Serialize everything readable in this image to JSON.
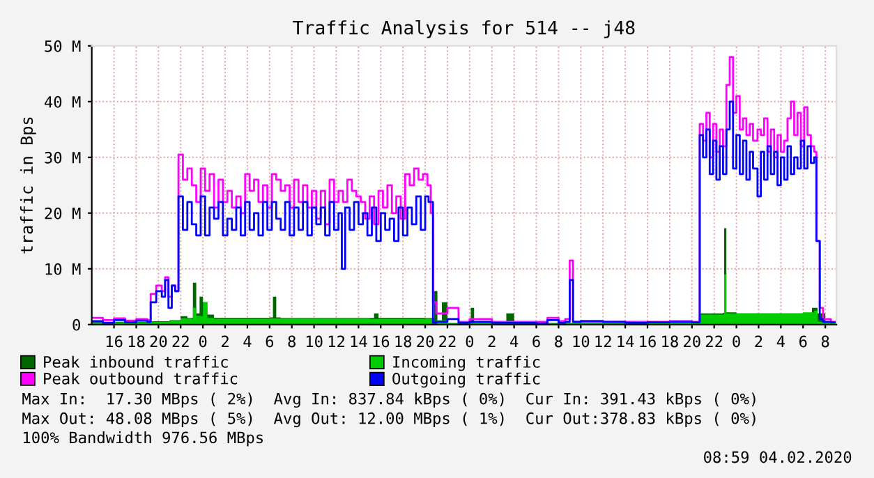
{
  "chart_data": {
    "type": "step",
    "title": "Traffic Analysis for 514 -- j48",
    "ylabel": "traffic in Bps",
    "xlim": [
      "2020-02-01T14:00",
      "2020-02-04T09:00"
    ],
    "xticks": [
      {
        "value": "2020-02-01T16:00",
        "label": "16"
      },
      {
        "value": "2020-02-01T18:00",
        "label": "18"
      },
      {
        "value": "2020-02-01T20:00",
        "label": "20"
      },
      {
        "value": "2020-02-01T22:00",
        "label": "22"
      },
      {
        "value": "2020-02-02T00:00",
        "label": "0"
      },
      {
        "value": "2020-02-02T02:00",
        "label": "2"
      },
      {
        "value": "2020-02-02T04:00",
        "label": "4"
      },
      {
        "value": "2020-02-02T06:00",
        "label": "6"
      },
      {
        "value": "2020-02-02T08:00",
        "label": "8"
      },
      {
        "value": "2020-02-02T10:00",
        "label": "10"
      },
      {
        "value": "2020-02-02T12:00",
        "label": "12"
      },
      {
        "value": "2020-02-02T14:00",
        "label": "14"
      },
      {
        "value": "2020-02-02T16:00",
        "label": "16"
      },
      {
        "value": "2020-02-02T18:00",
        "label": "18"
      },
      {
        "value": "2020-02-02T20:00",
        "label": "20"
      },
      {
        "value": "2020-02-02T22:00",
        "label": "22"
      },
      {
        "value": "2020-02-03T00:00",
        "label": "0"
      },
      {
        "value": "2020-02-03T02:00",
        "label": "2"
      },
      {
        "value": "2020-02-03T04:00",
        "label": "4"
      },
      {
        "value": "2020-02-03T06:00",
        "label": "6"
      },
      {
        "value": "2020-02-03T08:00",
        "label": "8"
      },
      {
        "value": "2020-02-03T10:00",
        "label": "10"
      },
      {
        "value": "2020-02-03T12:00",
        "label": "12"
      },
      {
        "value": "2020-02-03T14:00",
        "label": "14"
      },
      {
        "value": "2020-02-03T16:00",
        "label": "16"
      },
      {
        "value": "2020-02-03T18:00",
        "label": "18"
      },
      {
        "value": "2020-02-03T20:00",
        "label": "20"
      },
      {
        "value": "2020-02-03T22:00",
        "label": "22"
      },
      {
        "value": "2020-02-04T00:00",
        "label": "0"
      },
      {
        "value": "2020-02-04T02:00",
        "label": "2"
      },
      {
        "value": "2020-02-04T04:00",
        "label": "4"
      },
      {
        "value": "2020-02-04T06:00",
        "label": "6"
      },
      {
        "value": "2020-02-04T08:00",
        "label": "8"
      }
    ],
    "ylim": [
      0,
      50
    ],
    "yticks": [
      0,
      {
        "value": 10,
        "label": "10 M"
      },
      {
        "value": 20,
        "label": "20 M"
      },
      {
        "value": 30,
        "label": "30 M"
      },
      {
        "value": 40,
        "label": "40 M"
      },
      {
        "value": 50,
        "label": "50 M"
      }
    ],
    "grid": true,
    "legend": "bottom",
    "series": [
      {
        "name": "Peak inbound traffic",
        "type": "area",
        "color": "#006600",
        "x": [
          "2020-02-01T14:06",
          "2020-02-01T19:00",
          "2020-02-01T21:00",
          "2020-02-01T22:00",
          "2020-02-01T22:36",
          "2020-02-01T23:06",
          "2020-02-01T23:24",
          "2020-02-01T23:42",
          "2020-02-02T00:00",
          "2020-02-02T00:24",
          "2020-02-02T01:00",
          "2020-02-02T06:00",
          "2020-02-02T06:18",
          "2020-02-02T06:36",
          "2020-02-02T07:00",
          "2020-02-02T15:00",
          "2020-02-02T15:24",
          "2020-02-02T15:48",
          "2020-02-02T16:00",
          "2020-02-02T20:48",
          "2020-02-02T21:06",
          "2020-02-02T21:30",
          "2020-02-02T22:00",
          "2020-02-02T23:00",
          "2020-02-03T00:06",
          "2020-02-03T00:24",
          "2020-02-03T01:00",
          "2020-02-03T03:00",
          "2020-02-03T03:18",
          "2020-02-03T04:00",
          "2020-02-03T05:00",
          "2020-02-03T08:00",
          "2020-02-03T10:00",
          "2020-02-03T12:00",
          "2020-02-03T14:00",
          "2020-02-03T16:00",
          "2020-02-03T18:00",
          "2020-02-03T20:42",
          "2020-02-03T22:48",
          "2020-02-03T22:54",
          "2020-02-03T23:06",
          "2020-02-04T00:00",
          "2020-02-04T04:00",
          "2020-02-04T06:48",
          "2020-02-04T07:18",
          "2020-02-04T08:00",
          "2020-02-04T09:00"
        ],
        "values": [
          0.5,
          0.6,
          0.8,
          1.5,
          1.2,
          7.5,
          2,
          5,
          4,
          1.8,
          1.2,
          1.3,
          5,
          1.3,
          1.2,
          1.2,
          2,
          1.2,
          1.2,
          6,
          0.5,
          4,
          0.3,
          0.5,
          3,
          0.3,
          0.3,
          0.3,
          2,
          0.3,
          0.3,
          0.3,
          0.3,
          0.3,
          0.3,
          0.3,
          0.3,
          2,
          2.1,
          17.3,
          2.2,
          2,
          2,
          3,
          2,
          0.3,
          0.3
        ]
      },
      {
        "name": "Incoming traffic",
        "type": "area",
        "color": "#00cc00",
        "x": [
          "2020-02-01T14:06",
          "2020-02-01T19:00",
          "2020-02-01T21:00",
          "2020-02-01T22:00",
          "2020-02-01T23:00",
          "2020-02-01T23:06",
          "2020-02-01T23:24",
          "2020-02-02T00:00",
          "2020-02-02T00:24",
          "2020-02-02T01:00",
          "2020-02-02T06:00",
          "2020-02-02T15:00",
          "2020-02-02T20:00",
          "2020-02-02T20:42",
          "2020-02-02T21:00",
          "2020-02-02T22:00",
          "2020-02-03T00:00",
          "2020-02-03T04:00",
          "2020-02-03T08:00",
          "2020-02-03T12:00",
          "2020-02-03T16:00",
          "2020-02-03T20:00",
          "2020-02-03T20:42",
          "2020-02-03T22:54",
          "2020-02-03T23:06",
          "2020-02-04T02:00",
          "2020-02-04T06:00",
          "2020-02-04T07:00",
          "2020-02-04T07:18",
          "2020-02-04T08:00",
          "2020-02-04T09:00"
        ],
        "values": [
          0.4,
          0.5,
          0.7,
          1.1,
          1,
          3,
          1.5,
          4,
          1.2,
          1,
          1.1,
          1,
          1.1,
          0.2,
          0.8,
          0.2,
          0.3,
          0.2,
          0.3,
          0.2,
          0.3,
          0.3,
          1.8,
          9,
          2,
          2,
          2.2,
          2.5,
          0.5,
          0.3,
          0.3
        ]
      },
      {
        "name": "Peak outbound traffic",
        "color": "#ff00ff",
        "x": [
          "2020-02-01T14:06",
          "2020-02-01T15:00",
          "2020-02-01T16:00",
          "2020-02-01T17:00",
          "2020-02-01T18:00",
          "2020-02-01T19:00",
          "2020-02-01T19:18",
          "2020-02-01T19:48",
          "2020-02-01T20:18",
          "2020-02-01T20:36",
          "2020-02-01T20:54",
          "2020-02-01T21:12",
          "2020-02-01T21:30",
          "2020-02-01T21:48",
          "2020-02-01T22:12",
          "2020-02-01T22:36",
          "2020-02-01T23:00",
          "2020-02-01T23:24",
          "2020-02-01T23:48",
          "2020-02-02T00:12",
          "2020-02-02T00:36",
          "2020-02-02T01:00",
          "2020-02-02T01:24",
          "2020-02-02T01:48",
          "2020-02-02T02:12",
          "2020-02-02T02:36",
          "2020-02-02T03:00",
          "2020-02-02T03:24",
          "2020-02-02T03:48",
          "2020-02-02T04:12",
          "2020-02-02T04:36",
          "2020-02-02T05:00",
          "2020-02-02T05:24",
          "2020-02-02T05:48",
          "2020-02-02T06:12",
          "2020-02-02T06:36",
          "2020-02-02T07:00",
          "2020-02-02T07:24",
          "2020-02-02T07:48",
          "2020-02-02T08:12",
          "2020-02-02T08:36",
          "2020-02-02T09:00",
          "2020-02-02T09:24",
          "2020-02-02T09:48",
          "2020-02-02T10:12",
          "2020-02-02T10:36",
          "2020-02-02T11:00",
          "2020-02-02T11:24",
          "2020-02-02T11:48",
          "2020-02-02T12:12",
          "2020-02-02T12:36",
          "2020-02-02T13:00",
          "2020-02-02T13:24",
          "2020-02-02T13:48",
          "2020-02-02T14:12",
          "2020-02-02T14:36",
          "2020-02-02T15:00",
          "2020-02-02T15:24",
          "2020-02-02T15:48",
          "2020-02-02T16:12",
          "2020-02-02T16:36",
          "2020-02-02T17:00",
          "2020-02-02T17:24",
          "2020-02-02T17:48",
          "2020-02-02T18:12",
          "2020-02-02T18:36",
          "2020-02-02T19:00",
          "2020-02-02T19:24",
          "2020-02-02T19:48",
          "2020-02-02T20:12",
          "2020-02-02T20:30",
          "2020-02-02T20:42",
          "2020-02-02T21:00",
          "2020-02-02T22:00",
          "2020-02-02T23:00",
          "2020-02-03T00:00",
          "2020-02-03T02:00",
          "2020-02-03T04:00",
          "2020-02-03T06:00",
          "2020-02-03T07:00",
          "2020-02-03T08:00",
          "2020-02-03T08:36",
          "2020-02-03T09:00",
          "2020-02-03T09:18",
          "2020-02-03T10:00",
          "2020-02-03T12:00",
          "2020-02-03T14:00",
          "2020-02-03T16:00",
          "2020-02-03T18:00",
          "2020-02-03T20:00",
          "2020-02-03T20:42",
          "2020-02-03T21:00",
          "2020-02-03T21:18",
          "2020-02-03T21:36",
          "2020-02-03T21:54",
          "2020-02-03T22:12",
          "2020-02-03T22:30",
          "2020-02-03T22:48",
          "2020-02-03T23:06",
          "2020-02-03T23:24",
          "2020-02-03T23:42",
          "2020-02-04T00:00",
          "2020-02-04T00:18",
          "2020-02-04T00:36",
          "2020-02-04T00:54",
          "2020-02-04T01:12",
          "2020-02-04T01:30",
          "2020-02-04T01:54",
          "2020-02-04T02:12",
          "2020-02-04T02:30",
          "2020-02-04T02:48",
          "2020-02-04T03:06",
          "2020-02-04T03:24",
          "2020-02-04T03:42",
          "2020-02-04T04:00",
          "2020-02-04T04:18",
          "2020-02-04T04:36",
          "2020-02-04T04:54",
          "2020-02-04T05:12",
          "2020-02-04T05:30",
          "2020-02-04T05:48",
          "2020-02-04T06:06",
          "2020-02-04T06:24",
          "2020-02-04T06:42",
          "2020-02-04T07:00",
          "2020-02-04T07:12",
          "2020-02-04T07:30",
          "2020-02-04T07:48",
          "2020-02-04T08:30",
          "2020-02-04T09:00"
        ],
        "values": [
          1.2,
          0.8,
          1.1,
          0.7,
          1,
          0.8,
          5.5,
          7,
          6,
          8.5,
          5,
          7,
          6,
          30.5,
          26,
          28,
          25,
          22,
          28,
          24,
          27,
          21,
          26,
          22,
          24,
          21,
          23,
          20,
          27,
          24,
          26,
          22,
          25,
          21,
          27,
          26,
          24,
          25,
          21,
          26,
          22,
          25,
          21,
          24,
          19,
          24,
          18,
          26,
          22,
          24,
          22,
          26,
          24,
          23,
          22,
          19,
          23,
          18,
          24,
          21,
          25,
          20,
          23,
          19,
          27,
          25,
          28,
          26,
          27,
          25,
          20,
          4,
          2,
          3,
          0.5,
          1,
          0.5,
          0.5,
          0.5,
          1.2,
          0.6,
          1,
          11.5,
          0.5,
          0.6,
          0.5,
          0.5,
          0.5,
          0.6,
          0.5,
          36,
          33,
          38,
          30,
          36,
          31,
          35,
          32,
          43,
          48,
          38,
          41,
          35,
          37,
          34,
          36,
          33,
          35,
          34,
          37,
          31,
          35,
          30,
          34,
          31,
          33,
          37,
          40,
          34,
          38,
          32,
          39,
          34,
          32,
          31,
          15,
          3,
          1,
          0.5,
          0.5
        ]
      },
      {
        "name": "Outgoing traffic",
        "color": "#0000ff",
        "x": [
          "2020-02-01T14:06",
          "2020-02-01T15:00",
          "2020-02-01T16:00",
          "2020-02-01T17:00",
          "2020-02-01T18:00",
          "2020-02-01T19:00",
          "2020-02-01T19:18",
          "2020-02-01T19:48",
          "2020-02-01T20:18",
          "2020-02-01T20:36",
          "2020-02-01T20:54",
          "2020-02-01T21:12",
          "2020-02-01T21:30",
          "2020-02-01T21:48",
          "2020-02-01T22:12",
          "2020-02-01T22:36",
          "2020-02-01T23:00",
          "2020-02-01T23:24",
          "2020-02-01T23:48",
          "2020-02-02T00:12",
          "2020-02-02T00:36",
          "2020-02-02T01:00",
          "2020-02-02T01:24",
          "2020-02-02T01:48",
          "2020-02-02T02:12",
          "2020-02-02T02:36",
          "2020-02-02T03:00",
          "2020-02-02T03:24",
          "2020-02-02T03:48",
          "2020-02-02T04:12",
          "2020-02-02T04:36",
          "2020-02-02T05:00",
          "2020-02-02T05:24",
          "2020-02-02T05:48",
          "2020-02-02T06:12",
          "2020-02-02T06:36",
          "2020-02-02T07:00",
          "2020-02-02T07:24",
          "2020-02-02T07:48",
          "2020-02-02T08:12",
          "2020-02-02T08:36",
          "2020-02-02T09:00",
          "2020-02-02T09:24",
          "2020-02-02T09:48",
          "2020-02-02T10:12",
          "2020-02-02T10:36",
          "2020-02-02T11:00",
          "2020-02-02T11:24",
          "2020-02-02T11:48",
          "2020-02-02T12:12",
          "2020-02-02T12:30",
          "2020-02-02T12:48",
          "2020-02-02T13:12",
          "2020-02-02T13:36",
          "2020-02-02T14:00",
          "2020-02-02T14:24",
          "2020-02-02T14:48",
          "2020-02-02T15:12",
          "2020-02-02T15:36",
          "2020-02-02T16:00",
          "2020-02-02T16:24",
          "2020-02-02T16:48",
          "2020-02-02T17:12",
          "2020-02-02T17:36",
          "2020-02-02T18:00",
          "2020-02-02T18:24",
          "2020-02-02T18:48",
          "2020-02-02T19:12",
          "2020-02-02T19:36",
          "2020-02-02T20:00",
          "2020-02-02T20:18",
          "2020-02-02T20:42",
          "2020-02-02T21:00",
          "2020-02-02T22:00",
          "2020-02-02T23:00",
          "2020-02-03T00:00",
          "2020-02-03T02:00",
          "2020-02-03T04:00",
          "2020-02-03T06:00",
          "2020-02-03T07:00",
          "2020-02-03T08:00",
          "2020-02-03T08:36",
          "2020-02-03T09:00",
          "2020-02-03T09:18",
          "2020-02-03T10:00",
          "2020-02-03T12:00",
          "2020-02-03T14:00",
          "2020-02-03T16:00",
          "2020-02-03T18:00",
          "2020-02-03T20:00",
          "2020-02-03T20:42",
          "2020-02-03T21:00",
          "2020-02-03T21:18",
          "2020-02-03T21:36",
          "2020-02-03T21:54",
          "2020-02-03T22:12",
          "2020-02-03T22:30",
          "2020-02-03T22:48",
          "2020-02-03T23:06",
          "2020-02-03T23:24",
          "2020-02-03T23:42",
          "2020-02-04T00:00",
          "2020-02-04T00:18",
          "2020-02-04T00:36",
          "2020-02-04T00:54",
          "2020-02-04T01:12",
          "2020-02-04T01:30",
          "2020-02-04T01:54",
          "2020-02-04T02:12",
          "2020-02-04T02:30",
          "2020-02-04T02:48",
          "2020-02-04T03:06",
          "2020-02-04T03:24",
          "2020-02-04T03:42",
          "2020-02-04T04:00",
          "2020-02-04T04:18",
          "2020-02-04T04:36",
          "2020-02-04T04:54",
          "2020-02-04T05:12",
          "2020-02-04T05:30",
          "2020-02-04T05:48",
          "2020-02-04T06:06",
          "2020-02-04T06:24",
          "2020-02-04T06:42",
          "2020-02-04T07:00",
          "2020-02-04T07:12",
          "2020-02-04T07:30",
          "2020-02-04T07:48",
          "2020-02-04T08:30",
          "2020-02-04T09:00"
        ],
        "values": [
          0.6,
          0.3,
          0.8,
          0.4,
          0.7,
          0.5,
          4,
          6,
          5,
          8,
          3,
          7,
          6,
          23,
          17,
          22,
          18,
          16,
          23,
          16,
          21,
          19,
          22,
          16,
          19,
          17,
          21,
          16,
          22,
          17,
          20,
          16,
          22,
          17,
          22,
          19,
          17,
          22,
          16,
          21,
          17,
          22,
          16,
          21,
          18,
          21,
          16,
          22,
          17,
          20,
          10,
          21,
          17,
          22,
          18,
          20,
          16,
          21,
          15,
          20,
          17,
          19,
          15,
          21,
          16,
          21,
          18,
          23,
          17,
          23,
          22,
          0.3,
          0.5,
          1,
          0.3,
          0.5,
          0.3,
          0.3,
          0.2,
          0.8,
          0.3,
          0.5,
          8,
          0.5,
          0.6,
          0.5,
          0.3,
          0.4,
          0.5,
          0.4,
          34,
          30,
          35,
          27,
          33,
          26,
          32,
          27,
          35,
          40,
          28,
          34,
          27,
          33,
          26,
          31,
          28,
          23,
          31,
          26,
          32,
          27,
          31,
          25,
          30,
          26,
          32,
          27,
          30,
          28,
          33,
          28,
          32,
          29,
          30,
          15,
          1,
          0.5,
          0.4,
          0.4
        ]
      }
    ],
    "annotations": [
      "Max In:  17.30 MBps ( 2%)  Avg In: 837.84 kBps ( 0%)  Cur In: 391.43 kBps ( 0%)",
      "Max Out: 48.08 MBps ( 5%)  Avg Out: 12.00 MBps ( 1%)  Cur Out:378.83 kBps ( 0%)",
      "100% Bandwidth 976.56 MBps",
      "08:59 04.02.2020"
    ]
  }
}
